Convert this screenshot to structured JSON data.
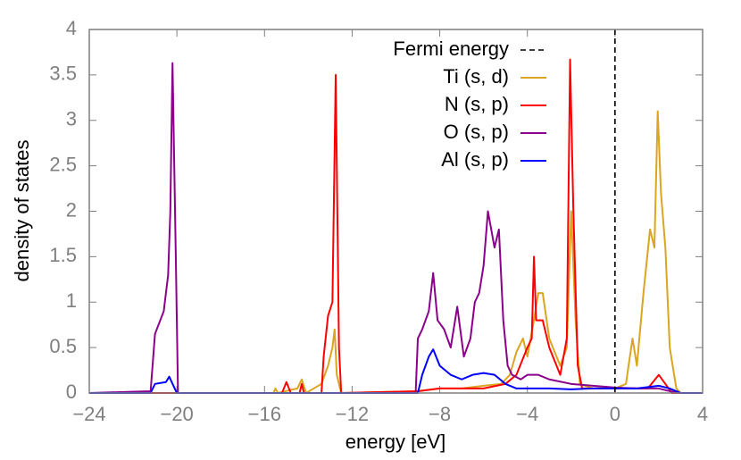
{
  "chart_data": {
    "type": "line",
    "xlabel": "energy [eV]",
    "ylabel": "density of states",
    "xlim": [
      -24,
      4
    ],
    "ylim": [
      0,
      4
    ],
    "xticks": [
      {
        "value": -24,
        "label": "−24"
      },
      {
        "value": -20,
        "label": "−20"
      },
      {
        "value": -16,
        "label": "−16"
      },
      {
        "value": -12,
        "label": "−12"
      },
      {
        "value": -8,
        "label": "−8"
      },
      {
        "value": -4,
        "label": "−4"
      },
      {
        "value": 0,
        "label": "0"
      },
      {
        "value": 4,
        "label": "4"
      }
    ],
    "yticks": [
      0,
      0.5,
      1,
      1.5,
      2,
      2.5,
      3,
      3.5,
      4
    ],
    "legend": "upper right",
    "fermi_line": {
      "name": "Fermi energy",
      "x": 0,
      "color": "#000000"
    },
    "series": [
      {
        "name": "Ti (s, d)",
        "color": "#daa520",
        "x": [
          -24,
          -16,
          -15.6,
          -15.5,
          -15.4,
          -14.5,
          -14.3,
          -14.1,
          -13.4,
          -13.1,
          -12.9,
          -12.8,
          -12.7,
          -12.5,
          -9,
          -8,
          -7,
          -6,
          -5.2,
          -4.8,
          -4.5,
          -4.2,
          -4.0,
          -3.7,
          -3.5,
          -3.3,
          -3.0,
          -2.5,
          -2.2,
          -2.0,
          -1.8,
          -1.6,
          -1,
          0,
          0.5,
          0.8,
          1.0,
          1.3,
          1.6,
          1.8,
          1.95,
          2.1,
          2.3,
          2.5,
          2.8,
          3,
          4
        ],
        "values": [
          0,
          0,
          0,
          0.05,
          0,
          0.05,
          0.15,
          0,
          0.1,
          0.3,
          0.5,
          0.7,
          0.2,
          0,
          0.02,
          0.05,
          0.05,
          0.08,
          0.1,
          0.2,
          0.45,
          0.6,
          0.4,
          0.8,
          1.1,
          1.1,
          0.6,
          0.3,
          0.5,
          2.0,
          0.8,
          0.1,
          0.05,
          0.05,
          0.1,
          0.6,
          0.3,
          1.1,
          1.8,
          1.6,
          3.1,
          2.2,
          1.6,
          0.5,
          0.05,
          0,
          0
        ]
      },
      {
        "name": "N (s, p)",
        "color": "#ff0000",
        "x": [
          -24,
          -15.2,
          -15.0,
          -14.8,
          -14.4,
          -14.3,
          -14.2,
          -13.4,
          -13.3,
          -13.1,
          -12.9,
          -12.75,
          -12.6,
          -12.5,
          -9,
          -8,
          -6,
          -5,
          -4.5,
          -4.0,
          -3.8,
          -3.7,
          -3.6,
          -3.3,
          -3.0,
          -2.5,
          -2.2,
          -2.05,
          -1.9,
          -1.7,
          -1.5,
          0,
          1.5,
          2.0,
          2.3,
          2.6,
          4
        ],
        "values": [
          0,
          0,
          0.12,
          0,
          0,
          0.1,
          0,
          0,
          0.4,
          0.85,
          1.0,
          3.5,
          0.5,
          0,
          0.02,
          0.05,
          0.05,
          0.1,
          0.2,
          0.5,
          0.6,
          1.5,
          0.8,
          0.8,
          0.5,
          0.2,
          0.6,
          3.67,
          2.0,
          0.3,
          0.05,
          0.05,
          0.05,
          0.2,
          0.1,
          0,
          0
        ]
      },
      {
        "name": "O (s, p)",
        "color": "#8b008b",
        "x": [
          -24,
          -21.2,
          -21.0,
          -20.6,
          -20.4,
          -20.3,
          -20.2,
          -20.05,
          -19.95,
          -9.1,
          -9.0,
          -8.8,
          -8.5,
          -8.3,
          -8.1,
          -7.8,
          -7.5,
          -7.2,
          -6.9,
          -6.6,
          -6.4,
          -6.2,
          -6.0,
          -5.8,
          -5.5,
          -5.3,
          -5.1,
          -4.9,
          -4.7,
          -4.3,
          -4.0,
          -3.5,
          -3.0,
          -2.0,
          -1.0,
          0,
          1,
          2,
          2.5,
          3,
          4
        ],
        "values": [
          0,
          0.02,
          0.65,
          0.9,
          1.3,
          2.0,
          3.63,
          1.5,
          0,
          0,
          0.6,
          0.7,
          0.9,
          1.32,
          0.8,
          0.7,
          0.5,
          0.95,
          0.4,
          0.6,
          1.0,
          1.1,
          1.4,
          2.0,
          1.6,
          1.8,
          0.8,
          0.3,
          0.2,
          0.15,
          0.2,
          0.2,
          0.15,
          0.1,
          0.08,
          0.06,
          0.05,
          0.05,
          0.02,
          0,
          0
        ]
      },
      {
        "name": "Al (s, p)",
        "color": "#0000ff",
        "x": [
          -24,
          -21.2,
          -21.0,
          -20.5,
          -20.35,
          -20.1,
          -20.0,
          -9.0,
          -8.8,
          -8.5,
          -8.3,
          -8.0,
          -7.5,
          -7.0,
          -6.5,
          -6.0,
          -5.5,
          -5.0,
          -4.5,
          -4.0,
          -3.0,
          -2.0,
          -1.0,
          0,
          1,
          2,
          2.5,
          3,
          4
        ],
        "values": [
          0,
          0,
          0.1,
          0.12,
          0.18,
          0.05,
          0,
          0,
          0.2,
          0.4,
          0.48,
          0.3,
          0.2,
          0.15,
          0.2,
          0.22,
          0.2,
          0.1,
          0.05,
          0.05,
          0.05,
          0.04,
          0.05,
          0.05,
          0.05,
          0.08,
          0.05,
          0,
          0
        ]
      }
    ]
  }
}
